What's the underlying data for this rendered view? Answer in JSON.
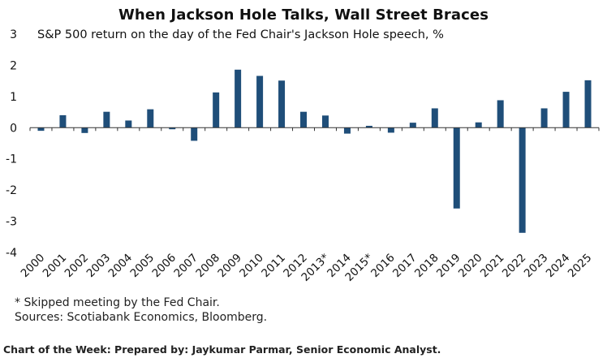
{
  "chart_data": {
    "type": "bar",
    "title": "When Jackson Hole Talks, Wall Street Braces",
    "subtitle": "S&P 500 return on the day of the Fed Chair's Jackson Hole speech, %",
    "xlabel": "",
    "ylabel": "",
    "categories": [
      "2000",
      "2001",
      "2002",
      "2003",
      "2004",
      "2005",
      "2006",
      "2007",
      "2008",
      "2009",
      "2010",
      "2011",
      "2012",
      "2013*",
      "2014",
      "2015*",
      "2016",
      "2017",
      "2018",
      "2019",
      "2020",
      "2021",
      "2022",
      "2023",
      "2024",
      "2025"
    ],
    "values": [
      -0.1,
      0.4,
      -0.17,
      0.51,
      0.23,
      0.59,
      -0.05,
      -0.42,
      1.13,
      1.86,
      1.66,
      1.51,
      0.51,
      0.39,
      -0.19,
      0.06,
      -0.16,
      0.16,
      0.62,
      -2.59,
      0.17,
      0.88,
      -3.37,
      0.62,
      1.15,
      1.52
    ],
    "ylim": [
      -4,
      3
    ],
    "yticks": [
      -4,
      -3,
      -2,
      -1,
      0,
      1,
      2,
      3
    ],
    "grid": false,
    "bar_color": "#1f4e79",
    "axis_color": "#333333"
  },
  "footnotes": {
    "skipped": "* Skipped meeting by the Fed Chair.",
    "sources": "Sources: Scotiabank Economics, Bloomberg."
  },
  "credit": "Chart of the Week: Prepared by: Jaykumar Parmar, Senior Economic Analyst."
}
